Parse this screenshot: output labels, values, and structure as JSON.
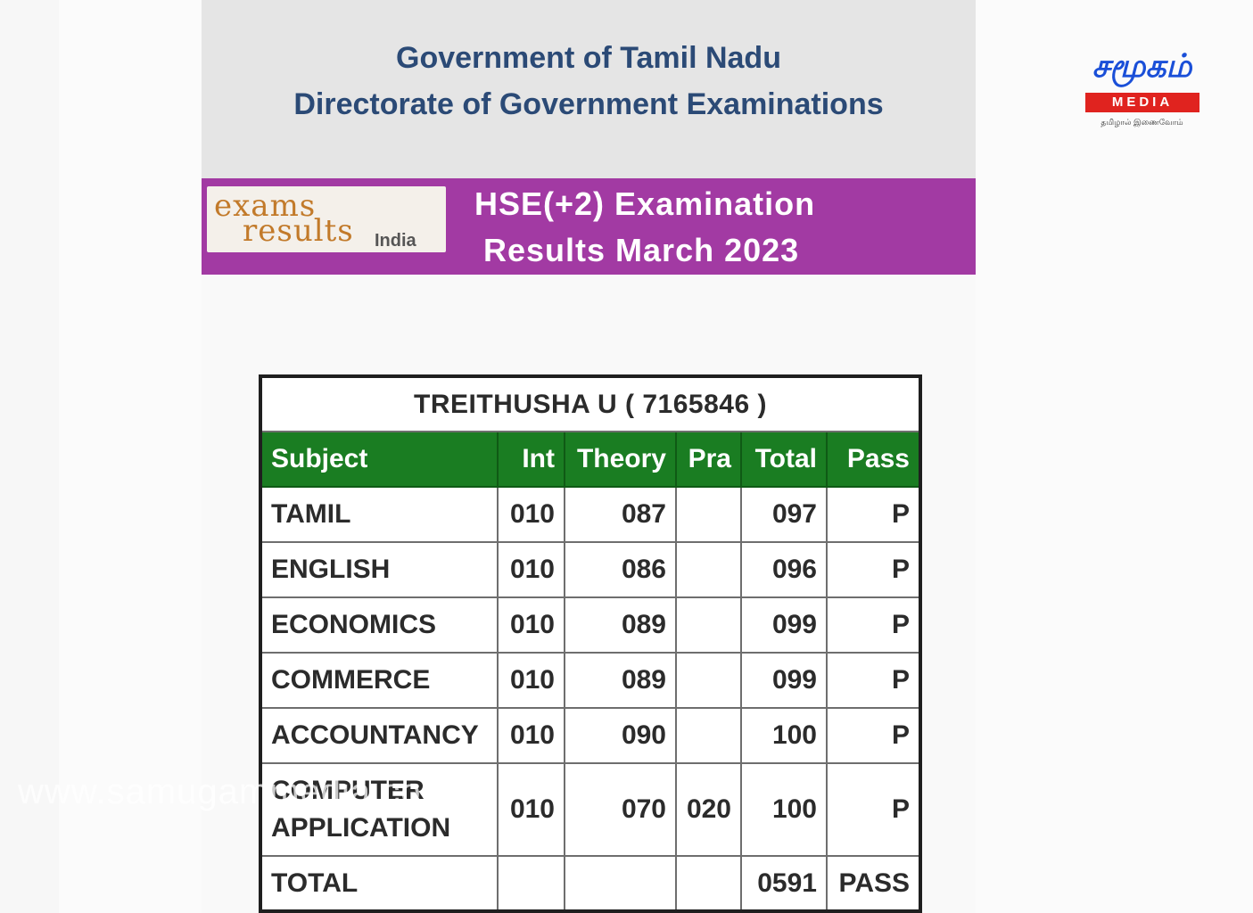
{
  "header": {
    "line1": "Government of Tamil Nadu",
    "line2": "Directorate of Government Examinations"
  },
  "banner": {
    "logo_word1": "exams",
    "logo_word2": "results",
    "logo_word3": "India",
    "title_line1": "HSE(+2)  Examination",
    "title_line2": "Results  March 2023"
  },
  "student": {
    "name_line": "TREITHUSHA U    ( 7165846 )"
  },
  "table": {
    "headers": [
      "Subject",
      "Int",
      "Theory",
      "Pra",
      "Total",
      "Pass"
    ],
    "rows": [
      {
        "subject": "TAMIL",
        "int": "010",
        "theory": "087",
        "pra": "",
        "total": "097",
        "pass": "P"
      },
      {
        "subject": "ENGLISH",
        "int": "010",
        "theory": "086",
        "pra": "",
        "total": "096",
        "pass": "P"
      },
      {
        "subject": "ECONOMICS",
        "int": "010",
        "theory": "089",
        "pra": "",
        "total": "099",
        "pass": "P"
      },
      {
        "subject": "COMMERCE",
        "int": "010",
        "theory": "089",
        "pra": "",
        "total": "099",
        "pass": "P"
      },
      {
        "subject": "ACCOUNTANCY",
        "int": "010",
        "theory": "090",
        "pra": "",
        "total": "100",
        "pass": "P"
      },
      {
        "subject_l1": "COMPUTER",
        "subject_l2": "APPLICATION",
        "int": "010",
        "theory": "070",
        "pra": "020",
        "total": "100",
        "pass": "P"
      }
    ],
    "total_row": {
      "label": "TOTAL",
      "total": "0591",
      "pass": "PASS"
    }
  },
  "watermark": "www.samugammedia.com",
  "brand": {
    "name_tamil": "சமூகம்",
    "name_media": "MEDIA",
    "tagline": "தமிழால் இணைவோம்",
    "colors": {
      "blue": "#1a4fd8",
      "red": "#e0231f"
    }
  },
  "colors": {
    "header_text": "#2b4a76",
    "banner_bg": "#a23aa3",
    "table_head_bg": "#1a7d22"
  }
}
